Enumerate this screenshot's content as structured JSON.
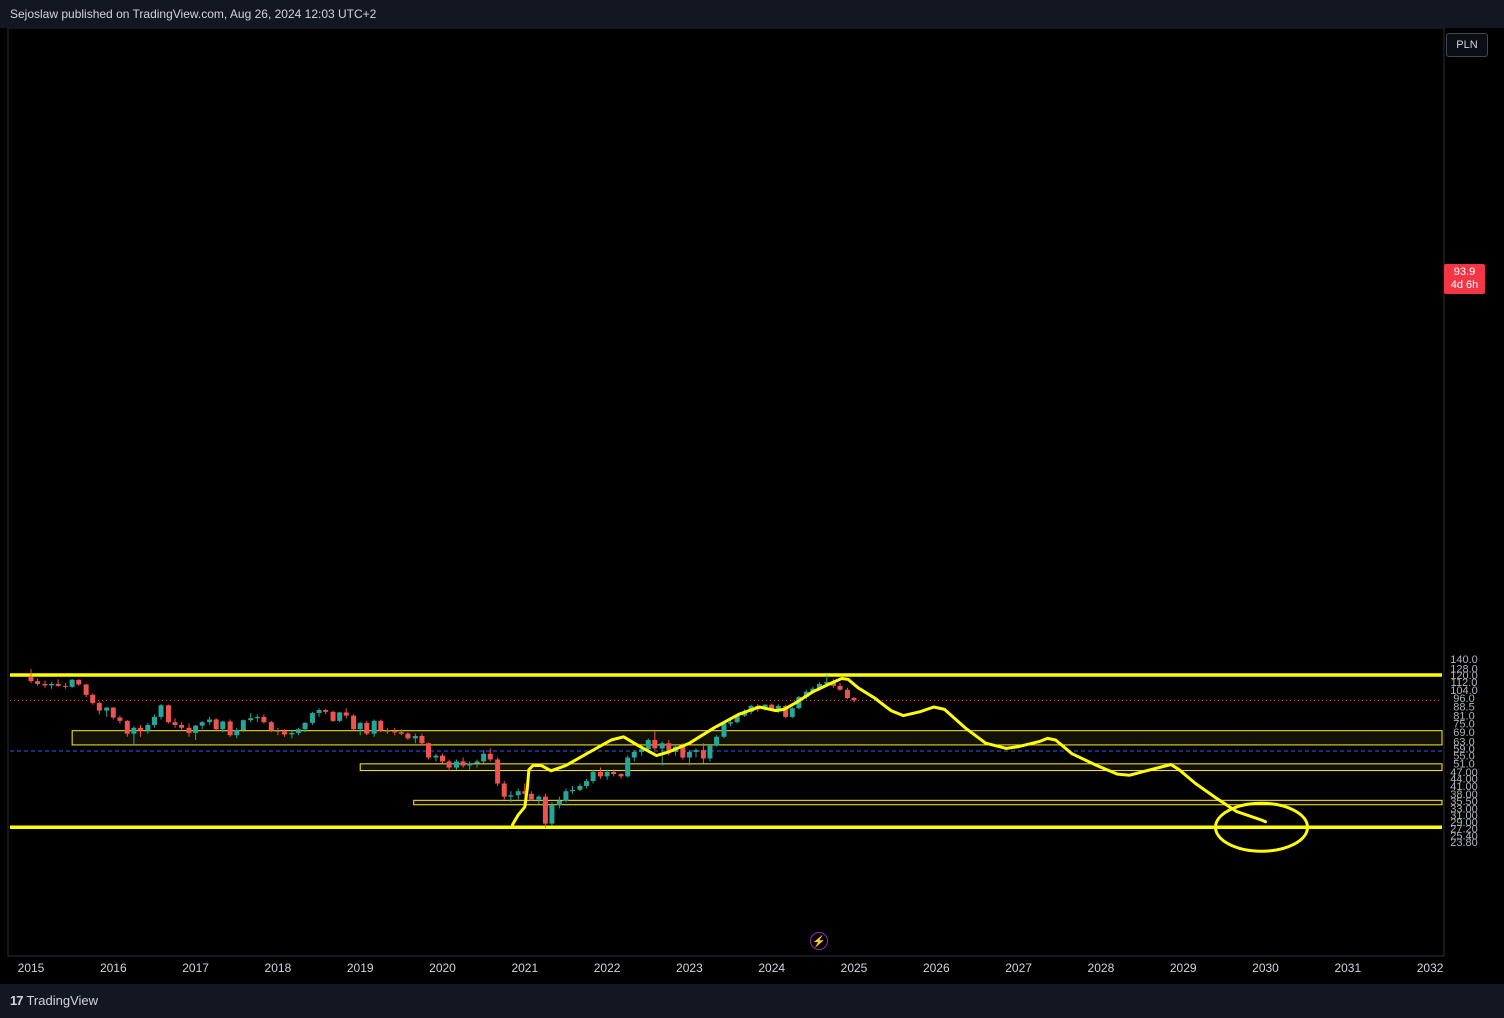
{
  "header": {
    "published_text": "Sejoslaw published on TradingView.com, Aug 26, 2024 12:03 UTC+2"
  },
  "footer": {
    "brand": "TradingView",
    "logo_mark": "17"
  },
  "toolbar": {
    "currency": "PLN"
  },
  "current_price": {
    "value": "93.9",
    "countdown": "4d 6h"
  },
  "colors": {
    "background": "#000000",
    "up_candle": "#26a69a",
    "down_candle": "#ef5350",
    "drawing": "#ffff00",
    "price_tag": "#f23645",
    "dashed_line": "#2962ff"
  },
  "icons": {
    "flash": "lightning-icon"
  },
  "chart_data": {
    "type": "candlestick",
    "scale": "log",
    "interval": "monthly",
    "y_ticks": [
      140.0,
      128.0,
      120.0,
      112.0,
      104.0,
      96.0,
      88.5,
      81.0,
      75.0,
      69.0,
      63.0,
      59.0,
      55.0,
      51.0,
      47.0,
      44.0,
      41.0,
      38.0,
      35.5,
      33.0,
      31.0,
      29.0,
      27.2,
      25.4,
      23.8
    ],
    "y_tick_labels": [
      "140.0",
      "128.0",
      "120.0",
      "112.0",
      "104.0",
      "96.0",
      "88.5",
      "81.0",
      "75.0",
      "69.0",
      "63.0",
      "59.0",
      "55.0",
      "51.0",
      "47.00",
      "44.00",
      "41.00",
      "38.00",
      "35.50",
      "33.00",
      "31.00",
      "29.00",
      "27.20",
      "25.40",
      "23.80"
    ],
    "x_ticks": [
      "2015",
      "2016",
      "2017",
      "2018",
      "2019",
      "2020",
      "2021",
      "2022",
      "2023",
      "2024",
      "2025",
      "2026",
      "2027",
      "2028",
      "2029",
      "2030",
      "2031",
      "2032"
    ],
    "horizontal_levels": [
      120.0,
      27.5
    ],
    "dashed_level": 57.5,
    "zones": [
      {
        "from_year": 2015.5,
        "low": 61.0,
        "high": 70.0
      },
      {
        "from_year": 2019.0,
        "low": 47.6,
        "high": 50.8
      },
      {
        "from_year": 2019.65,
        "low": 34.2,
        "high": 35.7
      }
    ],
    "candles": [
      {
        "t": 2015.0,
        "o": 118.0,
        "h": 127.0,
        "l": 111.0,
        "c": 113.0
      },
      {
        "t": 2015.08,
        "o": 113.0,
        "h": 116.0,
        "l": 108.0,
        "c": 110.0
      },
      {
        "t": 2015.17,
        "o": 110.0,
        "h": 113.5,
        "l": 106.0,
        "c": 108.5
      },
      {
        "t": 2015.25,
        "o": 108.5,
        "h": 112.0,
        "l": 105.0,
        "c": 110.0
      },
      {
        "t": 2015.33,
        "o": 110.0,
        "h": 115.0,
        "l": 107.0,
        "c": 108.0
      },
      {
        "t": 2015.42,
        "o": 108.0,
        "h": 111.0,
        "l": 105.0,
        "c": 107.0
      },
      {
        "t": 2015.5,
        "o": 107.0,
        "h": 115.5,
        "l": 106.0,
        "c": 114.5
      },
      {
        "t": 2015.58,
        "o": 114.5,
        "h": 115.0,
        "l": 108.0,
        "c": 109.5
      },
      {
        "t": 2015.67,
        "o": 109.5,
        "h": 110.0,
        "l": 97.0,
        "c": 99.0
      },
      {
        "t": 2015.75,
        "o": 99.0,
        "h": 100.5,
        "l": 90.0,
        "c": 91.5
      },
      {
        "t": 2015.83,
        "o": 91.5,
        "h": 93.0,
        "l": 82.0,
        "c": 85.0
      },
      {
        "t": 2015.92,
        "o": 85.0,
        "h": 88.0,
        "l": 80.0,
        "c": 87.5
      },
      {
        "t": 2016.0,
        "o": 87.5,
        "h": 88.0,
        "l": 78.0,
        "c": 79.5
      },
      {
        "t": 2016.08,
        "o": 79.5,
        "h": 81.0,
        "l": 75.0,
        "c": 77.0
      },
      {
        "t": 2016.17,
        "o": 77.0,
        "h": 77.5,
        "l": 66.0,
        "c": 68.0
      },
      {
        "t": 2016.25,
        "o": 68.0,
        "h": 73.0,
        "l": 61.0,
        "c": 72.0
      },
      {
        "t": 2016.33,
        "o": 72.0,
        "h": 74.0,
        "l": 66.0,
        "c": 70.0
      },
      {
        "t": 2016.42,
        "o": 70.0,
        "h": 75.5,
        "l": 68.0,
        "c": 74.0
      },
      {
        "t": 2016.5,
        "o": 74.0,
        "h": 82.0,
        "l": 72.0,
        "c": 80.0
      },
      {
        "t": 2016.58,
        "o": 80.0,
        "h": 90.5,
        "l": 78.0,
        "c": 89.5
      },
      {
        "t": 2016.67,
        "o": 89.5,
        "h": 90.0,
        "l": 75.0,
        "c": 76.0
      },
      {
        "t": 2016.75,
        "o": 76.0,
        "h": 79.0,
        "l": 72.0,
        "c": 74.0
      },
      {
        "t": 2016.83,
        "o": 74.0,
        "h": 76.0,
        "l": 70.0,
        "c": 72.0
      },
      {
        "t": 2016.92,
        "o": 72.0,
        "h": 75.0,
        "l": 66.0,
        "c": 68.5
      },
      {
        "t": 2017.0,
        "o": 68.5,
        "h": 74.0,
        "l": 64.0,
        "c": 73.5
      },
      {
        "t": 2017.08,
        "o": 73.5,
        "h": 77.0,
        "l": 71.0,
        "c": 76.0
      },
      {
        "t": 2017.17,
        "o": 76.0,
        "h": 80.0,
        "l": 74.0,
        "c": 78.0
      },
      {
        "t": 2017.25,
        "o": 78.0,
        "h": 79.0,
        "l": 70.0,
        "c": 71.0
      },
      {
        "t": 2017.33,
        "o": 71.0,
        "h": 77.0,
        "l": 69.0,
        "c": 76.5
      },
      {
        "t": 2017.42,
        "o": 76.5,
        "h": 78.0,
        "l": 66.0,
        "c": 67.0
      },
      {
        "t": 2017.5,
        "o": 67.0,
        "h": 72.0,
        "l": 65.0,
        "c": 70.5
      },
      {
        "t": 2017.58,
        "o": 70.5,
        "h": 78.0,
        "l": 69.0,
        "c": 77.5
      },
      {
        "t": 2017.67,
        "o": 77.5,
        "h": 83.0,
        "l": 76.0,
        "c": 79.0
      },
      {
        "t": 2017.75,
        "o": 79.0,
        "h": 82.0,
        "l": 76.0,
        "c": 80.0
      },
      {
        "t": 2017.83,
        "o": 80.0,
        "h": 82.0,
        "l": 75.0,
        "c": 76.0
      },
      {
        "t": 2017.92,
        "o": 76.0,
        "h": 77.0,
        "l": 69.0,
        "c": 70.0
      },
      {
        "t": 2018.0,
        "o": 70.0,
        "h": 72.0,
        "l": 67.0,
        "c": 69.5
      },
      {
        "t": 2018.08,
        "o": 69.5,
        "h": 71.0,
        "l": 66.0,
        "c": 67.5
      },
      {
        "t": 2018.17,
        "o": 67.5,
        "h": 70.0,
        "l": 65.0,
        "c": 68.5
      },
      {
        "t": 2018.25,
        "o": 68.5,
        "h": 72.0,
        "l": 67.0,
        "c": 71.0
      },
      {
        "t": 2018.33,
        "o": 71.0,
        "h": 76.0,
        "l": 69.0,
        "c": 75.5
      },
      {
        "t": 2018.42,
        "o": 75.5,
        "h": 84.0,
        "l": 74.0,
        "c": 83.0
      },
      {
        "t": 2018.5,
        "o": 83.0,
        "h": 87.0,
        "l": 80.0,
        "c": 85.5
      },
      {
        "t": 2018.58,
        "o": 85.5,
        "h": 86.5,
        "l": 82.0,
        "c": 84.0
      },
      {
        "t": 2018.67,
        "o": 84.0,
        "h": 85.0,
        "l": 76.0,
        "c": 77.0
      },
      {
        "t": 2018.75,
        "o": 77.0,
        "h": 84.0,
        "l": 76.0,
        "c": 83.5
      },
      {
        "t": 2018.83,
        "o": 83.5,
        "h": 87.0,
        "l": 79.0,
        "c": 81.0
      },
      {
        "t": 2018.92,
        "o": 81.0,
        "h": 82.0,
        "l": 70.0,
        "c": 71.0
      },
      {
        "t": 2019.0,
        "o": 71.0,
        "h": 76.0,
        "l": 67.0,
        "c": 75.5
      },
      {
        "t": 2019.08,
        "o": 75.5,
        "h": 77.0,
        "l": 67.0,
        "c": 68.0
      },
      {
        "t": 2019.17,
        "o": 68.0,
        "h": 78.0,
        "l": 66.0,
        "c": 77.0
      },
      {
        "t": 2019.25,
        "o": 77.0,
        "h": 78.0,
        "l": 69.0,
        "c": 70.0
      },
      {
        "t": 2019.33,
        "o": 70.0,
        "h": 72.0,
        "l": 68.0,
        "c": 69.5
      },
      {
        "t": 2019.42,
        "o": 69.5,
        "h": 72.0,
        "l": 67.0,
        "c": 69.0
      },
      {
        "t": 2019.5,
        "o": 69.0,
        "h": 71.0,
        "l": 67.0,
        "c": 68.0
      },
      {
        "t": 2019.58,
        "o": 68.0,
        "h": 69.0,
        "l": 64.0,
        "c": 65.0
      },
      {
        "t": 2019.67,
        "o": 65.0,
        "h": 68.0,
        "l": 62.0,
        "c": 66.5
      },
      {
        "t": 2019.75,
        "o": 66.5,
        "h": 68.0,
        "l": 61.0,
        "c": 62.0
      },
      {
        "t": 2019.83,
        "o": 62.0,
        "h": 62.5,
        "l": 53.0,
        "c": 54.0
      },
      {
        "t": 2019.92,
        "o": 54.0,
        "h": 56.0,
        "l": 52.0,
        "c": 55.0
      },
      {
        "t": 2020.0,
        "o": 55.0,
        "h": 56.0,
        "l": 51.0,
        "c": 52.0
      },
      {
        "t": 2020.08,
        "o": 52.0,
        "h": 53.0,
        "l": 47.5,
        "c": 49.0
      },
      {
        "t": 2020.17,
        "o": 49.0,
        "h": 53.0,
        "l": 48.0,
        "c": 52.0
      },
      {
        "t": 2020.25,
        "o": 52.0,
        "h": 54.0,
        "l": 49.0,
        "c": 50.0
      },
      {
        "t": 2020.33,
        "o": 50.0,
        "h": 52.0,
        "l": 48.0,
        "c": 51.0
      },
      {
        "t": 2020.42,
        "o": 51.0,
        "h": 53.0,
        "l": 49.0,
        "c": 52.0
      },
      {
        "t": 2020.5,
        "o": 52.0,
        "h": 58.0,
        "l": 51.0,
        "c": 56.0
      },
      {
        "t": 2020.58,
        "o": 56.0,
        "h": 59.0,
        "l": 52.0,
        "c": 53.0
      },
      {
        "t": 2020.67,
        "o": 53.0,
        "h": 54.0,
        "l": 41.0,
        "c": 42.0
      },
      {
        "t": 2020.75,
        "o": 42.0,
        "h": 43.0,
        "l": 36.0,
        "c": 37.0
      },
      {
        "t": 2020.83,
        "o": 37.0,
        "h": 39.0,
        "l": 35.0,
        "c": 37.5
      },
      {
        "t": 2020.92,
        "o": 37.5,
        "h": 40.0,
        "l": 36.0,
        "c": 39.0
      },
      {
        "t": 2021.0,
        "o": 39.0,
        "h": 42.0,
        "l": 37.0,
        "c": 38.0
      },
      {
        "t": 2021.08,
        "o": 38.0,
        "h": 39.0,
        "l": 35.5,
        "c": 36.0
      },
      {
        "t": 2021.17,
        "o": 36.0,
        "h": 37.5,
        "l": 34.5,
        "c": 37.0
      },
      {
        "t": 2021.25,
        "o": 37.0,
        "h": 38.0,
        "l": 27.3,
        "c": 28.5
      },
      {
        "t": 2021.33,
        "o": 28.5,
        "h": 35.0,
        "l": 28.0,
        "c": 34.0
      },
      {
        "t": 2021.42,
        "o": 34.0,
        "h": 37.0,
        "l": 33.0,
        "c": 35.5
      },
      {
        "t": 2021.5,
        "o": 35.5,
        "h": 40.0,
        "l": 35.0,
        "c": 39.0
      },
      {
        "t": 2021.58,
        "o": 39.0,
        "h": 41.0,
        "l": 38.0,
        "c": 39.5
      },
      {
        "t": 2021.67,
        "o": 39.5,
        "h": 42.0,
        "l": 39.0,
        "c": 41.0
      },
      {
        "t": 2021.75,
        "o": 41.0,
        "h": 44.0,
        "l": 40.0,
        "c": 43.0
      },
      {
        "t": 2021.83,
        "o": 43.0,
        "h": 48.0,
        "l": 42.0,
        "c": 47.0
      },
      {
        "t": 2021.92,
        "o": 47.0,
        "h": 49.0,
        "l": 44.0,
        "c": 45.0
      },
      {
        "t": 2022.0,
        "o": 45.0,
        "h": 48.0,
        "l": 43.5,
        "c": 47.0
      },
      {
        "t": 2022.08,
        "o": 47.0,
        "h": 48.0,
        "l": 45.0,
        "c": 46.0
      },
      {
        "t": 2022.17,
        "o": 46.0,
        "h": 46.5,
        "l": 44.0,
        "c": 45.0
      },
      {
        "t": 2022.25,
        "o": 45.0,
        "h": 55.0,
        "l": 44.5,
        "c": 54.0
      },
      {
        "t": 2022.33,
        "o": 54.0,
        "h": 58.0,
        "l": 52.0,
        "c": 57.0
      },
      {
        "t": 2022.42,
        "o": 57.0,
        "h": 60.0,
        "l": 55.0,
        "c": 58.5
      },
      {
        "t": 2022.5,
        "o": 58.5,
        "h": 65.0,
        "l": 57.0,
        "c": 64.0
      },
      {
        "t": 2022.58,
        "o": 64.0,
        "h": 70.0,
        "l": 58.0,
        "c": 59.0
      },
      {
        "t": 2022.67,
        "o": 59.0,
        "h": 63.0,
        "l": 50.0,
        "c": 62.0
      },
      {
        "t": 2022.75,
        "o": 62.0,
        "h": 64.0,
        "l": 55.0,
        "c": 57.0
      },
      {
        "t": 2022.83,
        "o": 57.0,
        "h": 61.0,
        "l": 55.0,
        "c": 60.0
      },
      {
        "t": 2022.92,
        "o": 60.0,
        "h": 62.0,
        "l": 53.0,
        "c": 54.0
      },
      {
        "t": 2023.0,
        "o": 54.0,
        "h": 58.0,
        "l": 50.0,
        "c": 57.0
      },
      {
        "t": 2023.08,
        "o": 57.0,
        "h": 59.0,
        "l": 54.0,
        "c": 58.0
      },
      {
        "t": 2023.17,
        "o": 58.0,
        "h": 62.0,
        "l": 51.0,
        "c": 53.5
      },
      {
        "t": 2023.25,
        "o": 53.5,
        "h": 61.0,
        "l": 52.0,
        "c": 60.5
      },
      {
        "t": 2023.33,
        "o": 60.5,
        "h": 67.0,
        "l": 60.0,
        "c": 66.0
      },
      {
        "t": 2023.42,
        "o": 66.0,
        "h": 76.0,
        "l": 65.0,
        "c": 75.0
      },
      {
        "t": 2023.5,
        "o": 75.0,
        "h": 79.0,
        "l": 73.0,
        "c": 76.0
      },
      {
        "t": 2023.58,
        "o": 76.0,
        "h": 82.0,
        "l": 75.0,
        "c": 81.0
      },
      {
        "t": 2023.67,
        "o": 81.0,
        "h": 86.0,
        "l": 80.0,
        "c": 84.0
      },
      {
        "t": 2023.75,
        "o": 84.0,
        "h": 90.0,
        "l": 82.0,
        "c": 89.0
      },
      {
        "t": 2023.83,
        "o": 89.0,
        "h": 90.5,
        "l": 84.0,
        "c": 86.0
      },
      {
        "t": 2023.92,
        "o": 86.0,
        "h": 90.5,
        "l": 85.0,
        "c": 90.0
      },
      {
        "t": 2024.0,
        "o": 90.0,
        "h": 91.0,
        "l": 85.0,
        "c": 86.0
      },
      {
        "t": 2024.08,
        "o": 86.0,
        "h": 90.5,
        "l": 83.0,
        "c": 89.0
      },
      {
        "t": 2024.17,
        "o": 89.0,
        "h": 90.0,
        "l": 79.0,
        "c": 80.0
      },
      {
        "t": 2024.25,
        "o": 80.0,
        "h": 88.0,
        "l": 79.0,
        "c": 87.0
      },
      {
        "t": 2024.33,
        "o": 87.0,
        "h": 98.0,
        "l": 86.0,
        "c": 97.0
      },
      {
        "t": 2024.42,
        "o": 97.0,
        "h": 104.0,
        "l": 95.0,
        "c": 102.0
      },
      {
        "t": 2024.5,
        "o": 102.0,
        "h": 107.0,
        "l": 100.0,
        "c": 105.0
      },
      {
        "t": 2024.58,
        "o": 105.0,
        "h": 112.0,
        "l": 103.0,
        "c": 110.0
      },
      {
        "t": 2024.67,
        "o": 110.0,
        "h": 120.0,
        "l": 108.0,
        "c": 112.0
      },
      {
        "t": 2024.75,
        "o": 112.0,
        "h": 115.0,
        "l": 106.0,
        "c": 108.0
      },
      {
        "t": 2024.83,
        "o": 108.0,
        "h": 111.0,
        "l": 103.0,
        "c": 104.0
      },
      {
        "t": 2024.92,
        "o": 104.0,
        "h": 106.0,
        "l": 95.0,
        "c": 96.0
      },
      {
        "t": 2025.0,
        "o": 96.0,
        "h": 97.0,
        "l": 92.0,
        "c": 93.9
      }
    ],
    "projection_path": [
      [
        2020.85,
        28.2
      ],
      [
        2020.92,
        31.0
      ],
      [
        2021.0,
        33.5
      ],
      [
        2021.03,
        40.0
      ],
      [
        2021.05,
        48.0
      ],
      [
        2021.1,
        50.0
      ],
      [
        2021.2,
        50.0
      ],
      [
        2021.32,
        47.5
      ],
      [
        2021.5,
        50.0
      ],
      [
        2021.75,
        56.0
      ],
      [
        2022.05,
        64.0
      ],
      [
        2022.2,
        66.0
      ],
      [
        2022.4,
        60.0
      ],
      [
        2022.6,
        55.0
      ],
      [
        2022.75,
        57.0
      ],
      [
        2023.0,
        62.0
      ],
      [
        2023.3,
        72.0
      ],
      [
        2023.6,
        82.0
      ],
      [
        2023.85,
        88.0
      ],
      [
        2023.95,
        86.5
      ],
      [
        2024.05,
        85.0
      ],
      [
        2024.15,
        86.0
      ],
      [
        2024.3,
        92.0
      ],
      [
        2024.5,
        102.0
      ],
      [
        2024.7,
        110.0
      ],
      [
        2024.85,
        116.0
      ],
      [
        2024.93,
        115.0
      ],
      [
        2025.05,
        106.0
      ],
      [
        2025.25,
        96.0
      ],
      [
        2025.45,
        85.0
      ],
      [
        2025.6,
        81.0
      ],
      [
        2025.8,
        84.0
      ],
      [
        2025.97,
        88.0
      ],
      [
        2026.1,
        86.0
      ],
      [
        2026.35,
        72.0
      ],
      [
        2026.6,
        62.0
      ],
      [
        2026.85,
        59.0
      ],
      [
        2027.0,
        60.0
      ],
      [
        2027.25,
        63.0
      ],
      [
        2027.35,
        65.0
      ],
      [
        2027.45,
        64.0
      ],
      [
        2027.65,
        56.0
      ],
      [
        2027.95,
        50.0
      ],
      [
        2028.2,
        46.0
      ],
      [
        2028.35,
        45.5
      ],
      [
        2028.5,
        47.0
      ],
      [
        2028.85,
        50.5
      ],
      [
        2028.95,
        48.0
      ],
      [
        2029.15,
        42.0
      ],
      [
        2029.4,
        36.5
      ],
      [
        2029.65,
        32.0
      ],
      [
        2029.95,
        29.5
      ],
      [
        2030.0,
        29.0
      ]
    ],
    "target_circle": {
      "t": 2030.0,
      "v": 28.6
    }
  }
}
